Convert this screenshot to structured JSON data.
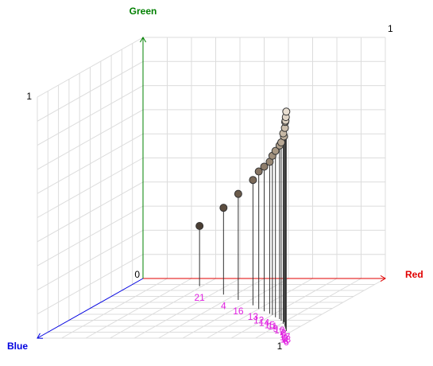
{
  "chart_data": {
    "type": "scatter3d",
    "x_label": "Red",
    "y_label": "Green",
    "z_label": "Blue",
    "x_color": "#e00000",
    "y_color": "#008000",
    "z_color": "#0000e0",
    "xlim": [
      0,
      1
    ],
    "ylim": [
      0,
      1
    ],
    "zlim": [
      0,
      1
    ],
    "xticks": [
      0,
      1
    ],
    "yticks": [
      1
    ],
    "zticks": [
      1
    ],
    "grid": true,
    "label_color": "#e020e0",
    "x": [
      0.29,
      0.45,
      0.55,
      0.65,
      0.7,
      0.74,
      0.78,
      0.8,
      0.83,
      0.86,
      0.88,
      0.9,
      0.91,
      0.93,
      0.94,
      0.95,
      0.96,
      0.975
    ],
    "y": [
      0.25,
      0.36,
      0.44,
      0.52,
      0.57,
      0.6,
      0.63,
      0.66,
      0.69,
      0.72,
      0.74,
      0.77,
      0.79,
      0.82,
      0.85,
      0.86,
      0.88,
      0.91
    ],
    "z": [
      0.13,
      0.27,
      0.36,
      0.45,
      0.51,
      0.55,
      0.59,
      0.61,
      0.65,
      0.68,
      0.71,
      0.73,
      0.76,
      0.79,
      0.81,
      0.83,
      0.85,
      0.88
    ],
    "labels": [
      "21",
      "4",
      "16",
      "13",
      "12",
      "14",
      "15",
      "11",
      "9",
      "10",
      "7",
      "3",
      "5",
      "17",
      "2",
      "18",
      "8",
      "6"
    ],
    "colors": [
      "#4a3e33",
      "#5c4d3f",
      "#6b5b4b",
      "#7a6958",
      "#857463",
      "#8e7d6b",
      "#978774",
      "#9f8f7c",
      "#a89884",
      "#b0a08c",
      "#b8a895",
      "#bfb09d",
      "#c6b8a5",
      "#cdc0ae",
      "#d4c7b6",
      "#dacfbf",
      "#e1d6c8",
      "#e8ded1"
    ]
  }
}
